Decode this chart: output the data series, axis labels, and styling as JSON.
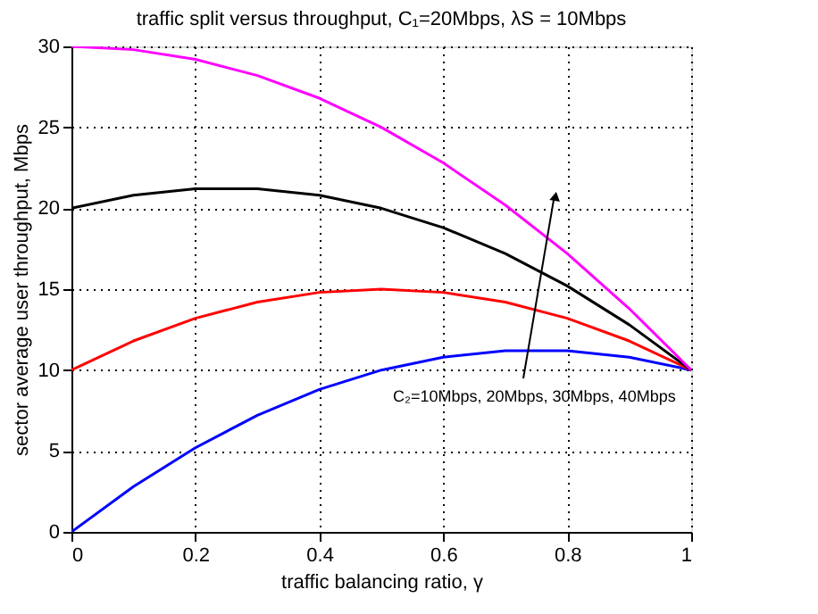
{
  "chart_data": {
    "type": "line",
    "title": "traffic split versus throughput, C₁=20Mbps, λS = 10Mbps",
    "xlabel": "traffic balancing ratio, γ",
    "ylabel": "sector average user throughput, Mbps",
    "x": [
      0,
      0.1,
      0.2,
      0.3,
      0.4,
      0.5,
      0.6,
      0.7,
      0.8,
      0.9,
      1
    ],
    "series": [
      {
        "color": "#0000ff",
        "values": [
          0,
          2.8,
          5.2,
          7.2,
          8.8,
          10,
          10.8,
          11.2,
          11.2,
          10.8,
          10
        ]
      },
      {
        "color": "#ff0000",
        "values": [
          10,
          11.8,
          13.2,
          14.2,
          14.8,
          15,
          14.8,
          14.2,
          13.2,
          11.8,
          10
        ]
      },
      {
        "color": "#000000",
        "values": [
          20,
          20.8,
          21.2,
          21.2,
          20.8,
          20,
          18.8,
          17.2,
          15.2,
          12.8,
          10
        ]
      },
      {
        "color": "#ff00ff",
        "values": [
          30,
          29.8,
          29.2,
          28.2,
          26.8,
          25,
          22.8,
          20.2,
          17.2,
          13.8,
          10
        ]
      }
    ],
    "xlim": [
      0,
      1
    ],
    "xticks": [
      0,
      0.2,
      0.4,
      0.6,
      0.8,
      1
    ],
    "ylim": [
      0,
      30
    ],
    "yticks": [
      0,
      5,
      10,
      15,
      20,
      25,
      30
    ],
    "annotations": [
      "C₂=10Mbps, 20Mbps, 30Mbps, 40Mbps"
    ],
    "grid": true,
    "line_style": "solid",
    "marker": "none",
    "legend": false
  }
}
